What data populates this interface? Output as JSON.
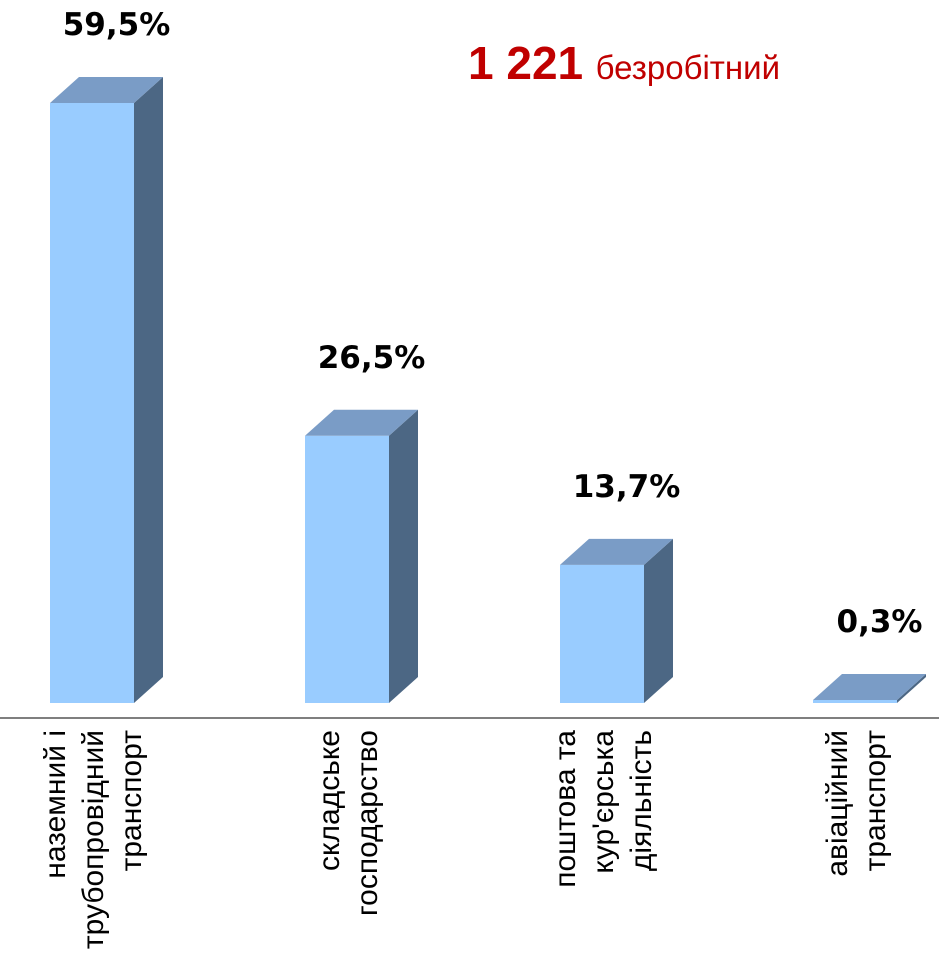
{
  "headline": {
    "count": "1 221",
    "word": "безробітний",
    "color": "#c00000"
  },
  "chart_data": {
    "type": "bar",
    "categories": [
      [
        "наземний і",
        "трубопровідний",
        "транспорт"
      ],
      [
        "складське",
        "господарство"
      ],
      [
        "поштова та",
        "кур'єрська",
        "діяльність"
      ],
      [
        "авіаційний",
        "транспорт"
      ]
    ],
    "values": [
      59.5,
      26.5,
      13.7,
      0.3
    ],
    "data_labels": [
      "59,5%",
      "26,5%",
      "13,7%",
      "0,3%"
    ],
    "ylim": [
      0,
      60
    ],
    "grid": false,
    "bar_front_color": "#99ccff",
    "bar_side_color": "#4c6784",
    "bar_top_color": "#7a9cc6"
  }
}
